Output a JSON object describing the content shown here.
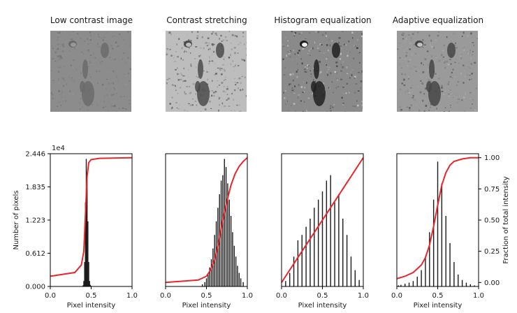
{
  "titles": [
    "Low contrast image",
    "Contrast stretching",
    "Histogram equalization",
    "Adaptive equalization"
  ],
  "images": [
    {
      "name": "low-contrast",
      "bg": "#8c8c8c",
      "contrast": 0.22
    },
    {
      "name": "contrast-stretch",
      "bg": "#bdbdbd",
      "contrast": 0.55
    },
    {
      "name": "hist-equalized",
      "bg": "#8a8a8a",
      "contrast": 1.0
    },
    {
      "name": "adaptive-equalized",
      "bg": "#9a9a9a",
      "contrast": 0.6
    }
  ],
  "chart_data": [
    {
      "type": "bar",
      "title": "Low contrast image",
      "xlabel": "Pixel intensity",
      "ylabel": "Number of pixels",
      "y_multiplier_label": "1e4",
      "xlim": [
        0.0,
        1.0
      ],
      "ylim": [
        0.0,
        2.446
      ],
      "xticks": [
        "0.0",
        "0.5",
        "1.0"
      ],
      "yticks": [
        "0.000",
        "0.612",
        "1.223",
        "1.835",
        "2.446"
      ],
      "histogram": {
        "x": [
          0.4,
          0.41,
          0.42,
          0.43,
          0.44,
          0.45,
          0.46,
          0.47,
          0.48,
          0.49,
          0.5
        ],
        "y": [
          0.02,
          0.1,
          0.45,
          1.55,
          2.35,
          2.1,
          1.2,
          0.45,
          0.1,
          0.03,
          0.01
        ]
      },
      "cdf": {
        "x": [
          0.0,
          0.3,
          0.38,
          0.41,
          0.43,
          0.45,
          0.47,
          0.5,
          0.6,
          1.0
        ],
        "y": [
          0.05,
          0.08,
          0.14,
          0.25,
          0.55,
          0.85,
          0.96,
          0.985,
          0.995,
          1.0
        ]
      }
    },
    {
      "type": "bar",
      "title": "Contrast stretching",
      "xlabel": "Pixel intensity",
      "xlim": [
        0.0,
        1.0
      ],
      "xticks": [
        "0.0",
        "0.5",
        "1.0"
      ],
      "histogram": {
        "x": [
          0.45,
          0.48,
          0.5,
          0.52,
          0.54,
          0.56,
          0.58,
          0.6,
          0.62,
          0.64,
          0.66,
          0.68,
          0.7,
          0.72,
          0.74,
          0.76,
          0.78,
          0.8,
          0.82,
          0.84,
          0.86,
          0.88,
          0.9,
          0.92,
          0.95
        ],
        "y": [
          0.04,
          0.08,
          0.15,
          0.22,
          0.35,
          0.5,
          0.7,
          0.95,
          1.2,
          1.45,
          1.7,
          1.95,
          2.05,
          2.35,
          2.2,
          1.9,
          1.6,
          1.3,
          1.0,
          0.75,
          0.55,
          0.38,
          0.25,
          0.15,
          0.08
        ]
      },
      "cdf": {
        "x": [
          0.0,
          0.4,
          0.5,
          0.55,
          0.6,
          0.65,
          0.7,
          0.75,
          0.8,
          0.85,
          0.9,
          0.95,
          1.0
        ],
        "y": [
          0.0,
          0.02,
          0.05,
          0.1,
          0.18,
          0.32,
          0.5,
          0.65,
          0.78,
          0.87,
          0.93,
          0.97,
          1.0
        ]
      }
    },
    {
      "type": "bar",
      "title": "Histogram equalization",
      "xlabel": "Pixel intensity",
      "xlim": [
        0.0,
        1.0
      ],
      "xticks": [
        "0.0",
        "0.5",
        "1.0"
      ],
      "histogram": {
        "x": [
          0.05,
          0.1,
          0.15,
          0.2,
          0.25,
          0.3,
          0.35,
          0.4,
          0.45,
          0.5,
          0.55,
          0.6,
          0.65,
          0.7,
          0.75,
          0.8,
          0.85,
          0.9,
          0.95
        ],
        "y": [
          0.1,
          0.25,
          0.55,
          0.85,
          0.95,
          1.1,
          1.25,
          1.45,
          1.6,
          1.75,
          1.95,
          2.05,
          1.55,
          1.7,
          1.25,
          0.95,
          0.55,
          0.3,
          0.12
        ]
      },
      "cdf": {
        "x": [
          0.0,
          0.05,
          0.1,
          0.15,
          0.2,
          0.25,
          0.3,
          0.35,
          0.4,
          0.45,
          0.5,
          0.55,
          0.6,
          0.65,
          0.7,
          0.75,
          0.8,
          0.85,
          0.9,
          0.95,
          1.0
        ],
        "y": [
          0.0,
          0.05,
          0.1,
          0.15,
          0.2,
          0.25,
          0.3,
          0.35,
          0.4,
          0.45,
          0.5,
          0.55,
          0.6,
          0.65,
          0.7,
          0.75,
          0.8,
          0.85,
          0.9,
          0.95,
          1.0
        ]
      }
    },
    {
      "type": "bar",
      "title": "Adaptive equalization",
      "xlabel": "Pixel intensity",
      "ylabel_right": "Fraction of total intensity",
      "xlim": [
        0.0,
        1.0
      ],
      "ylim_right": [
        0.0,
        1.0
      ],
      "xticks": [
        "0.0",
        "0.5",
        "1.0"
      ],
      "yticks_right": [
        "0.00",
        "0.25",
        "0.50",
        "0.75",
        "1.00"
      ],
      "histogram": {
        "x": [
          0.02,
          0.05,
          0.1,
          0.15,
          0.2,
          0.25,
          0.3,
          0.35,
          0.4,
          0.45,
          0.5,
          0.55,
          0.6,
          0.65,
          0.7,
          0.75,
          0.8,
          0.85,
          0.9,
          0.95,
          1.0
        ],
        "y": [
          0.02,
          0.03,
          0.05,
          0.07,
          0.1,
          0.18,
          0.3,
          0.55,
          1.0,
          1.6,
          2.3,
          1.9,
          1.3,
          0.8,
          0.45,
          0.22,
          0.12,
          0.07,
          0.04,
          0.02,
          0.01
        ]
      },
      "cdf": {
        "x": [
          0.0,
          0.1,
          0.2,
          0.3,
          0.35,
          0.4,
          0.45,
          0.5,
          0.55,
          0.6,
          0.65,
          0.7,
          0.8,
          0.9,
          1.0
        ],
        "y": [
          0.03,
          0.05,
          0.08,
          0.14,
          0.2,
          0.3,
          0.45,
          0.62,
          0.78,
          0.88,
          0.94,
          0.97,
          0.99,
          1.0,
          1.0
        ]
      }
    }
  ],
  "colors": {
    "histogram": "#1a1a1a",
    "cdf": "#e8262b"
  }
}
